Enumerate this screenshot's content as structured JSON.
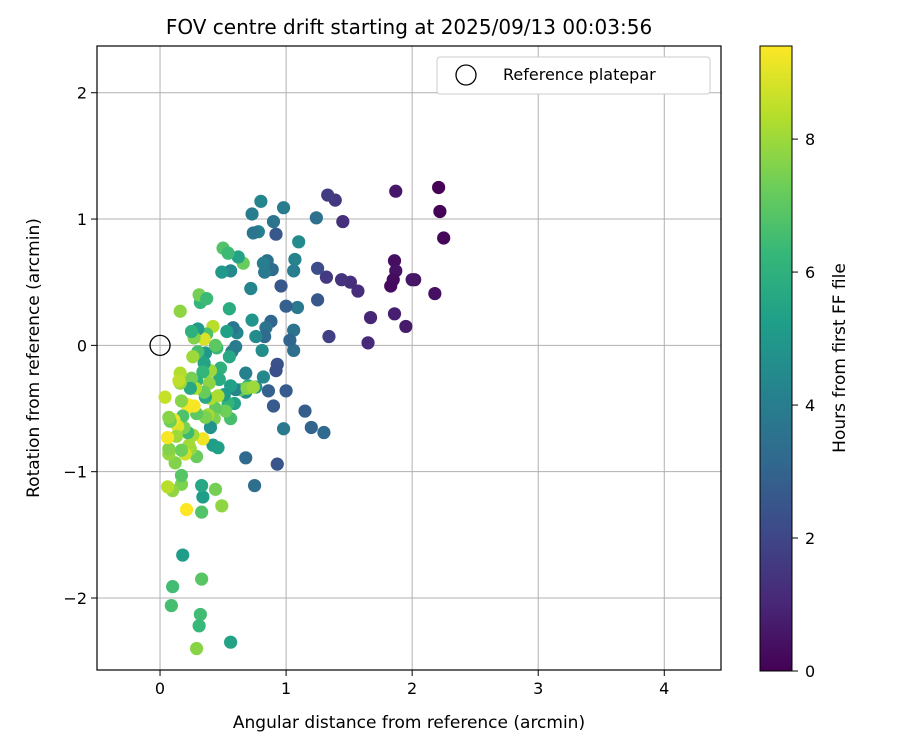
{
  "chart_data": {
    "type": "scatter",
    "title": "FOV centre drift starting at 2025/09/13 00:03:56",
    "xlabel": "Angular distance from reference (arcmin)",
    "ylabel": "Rotation from reference (arcmin)",
    "xlim": [
      -0.5,
      4.45
    ],
    "ylim": [
      -2.57,
      2.37
    ],
    "x_ticks": [
      0,
      1,
      2,
      3,
      4
    ],
    "y_ticks": [
      2,
      1,
      0,
      -1,
      -2
    ],
    "y_tick_labels": [
      "2",
      "1",
      "0",
      "−1",
      "−2"
    ],
    "grid": true,
    "legend": {
      "label": "Reference platepar",
      "placement": "top-right",
      "marker": "open circle"
    },
    "reference_point": {
      "x": 0,
      "y": 0
    },
    "colorbar": {
      "label": "Hours from first FF file",
      "range": [
        0,
        9.4
      ],
      "ticks": [
        0,
        2,
        4,
        6,
        8
      ],
      "colormap": "viridis",
      "colors": [
        "#440154",
        "#482878",
        "#3e4989",
        "#31688e",
        "#26828e",
        "#1f9e89",
        "#35b779",
        "#6ece58",
        "#b5de2b",
        "#fde725"
      ]
    },
    "points": [
      [
        2.21,
        1.25,
        0.05
      ],
      [
        2.22,
        1.06,
        0.1
      ],
      [
        2.25,
        0.85,
        0.15
      ],
      [
        2.18,
        0.41,
        0.4
      ],
      [
        2.02,
        0.52,
        0.5
      ],
      [
        2.0,
        0.52,
        0.55
      ],
      [
        1.95,
        0.15,
        0.7
      ],
      [
        1.87,
        1.22,
        0.6
      ],
      [
        1.86,
        0.67,
        0.35
      ],
      [
        1.87,
        0.59,
        0.45
      ],
      [
        1.85,
        0.52,
        0.3
      ],
      [
        1.83,
        0.47,
        0.25
      ],
      [
        1.86,
        0.25,
        0.8
      ],
      [
        1.67,
        0.22,
        1.0
      ],
      [
        1.65,
        0.02,
        1.1
      ],
      [
        1.57,
        0.43,
        1.2
      ],
      [
        1.51,
        0.5,
        1.3
      ],
      [
        1.44,
        0.52,
        1.4
      ],
      [
        1.45,
        0.98,
        1.3
      ],
      [
        1.39,
        1.15,
        1.5
      ],
      [
        1.33,
        1.19,
        1.7
      ],
      [
        1.32,
        0.54,
        1.6
      ],
      [
        1.34,
        0.07,
        1.8
      ],
      [
        1.25,
        0.61,
        2.2
      ],
      [
        1.25,
        0.36,
        2.6
      ],
      [
        1.15,
        -0.52,
        2.8
      ],
      [
        1.2,
        -0.65,
        3.0
      ],
      [
        1.3,
        -0.69,
        3.2
      ],
      [
        1.24,
        1.01,
        3.5
      ],
      [
        1.1,
        0.82,
        4.5
      ],
      [
        1.09,
        0.3,
        3.8
      ],
      [
        1.06,
        0.59,
        4.0
      ],
      [
        1.07,
        0.68,
        4.2
      ],
      [
        1.06,
        0.12,
        3.6
      ],
      [
        1.06,
        -0.04,
        3.4
      ],
      [
        1.03,
        0.04,
        3.1
      ],
      [
        1.0,
        0.31,
        2.9
      ],
      [
        1.0,
        -0.36,
        2.7
      ],
      [
        0.98,
        1.09,
        3.9
      ],
      [
        0.98,
        -0.66,
        3.8
      ],
      [
        0.96,
        0.47,
        2.6
      ],
      [
        0.93,
        -0.15,
        2.4
      ],
      [
        0.92,
        -0.2,
        2.3
      ],
      [
        0.93,
        -0.94,
        2.5
      ],
      [
        0.92,
        0.88,
        2.6
      ],
      [
        0.9,
        0.98,
        3.6
      ],
      [
        0.89,
        0.6,
        3.3
      ],
      [
        0.88,
        0.19,
        3.1
      ],
      [
        0.86,
        -0.36,
        2.9
      ],
      [
        0.9,
        -0.48,
        2.7
      ],
      [
        0.85,
        0.67,
        3.4
      ],
      [
        0.84,
        0.14,
        3.6
      ],
      [
        0.83,
        0.58,
        3.8
      ],
      [
        0.82,
        0.65,
        4.0
      ],
      [
        0.83,
        0.07,
        3.2
      ],
      [
        0.82,
        -0.25,
        4.4
      ],
      [
        0.8,
        1.14,
        4.3
      ],
      [
        0.81,
        -0.04,
        4.6
      ],
      [
        0.78,
        0.9,
        4.1
      ],
      [
        0.76,
        0.07,
        4.5
      ],
      [
        0.76,
        -0.33,
        4.7
      ],
      [
        0.75,
        -1.11,
        3.4
      ],
      [
        0.74,
        0.89,
        3.7
      ],
      [
        0.73,
        1.04,
        4.0
      ],
      [
        0.73,
        0.2,
        4.9
      ],
      [
        0.72,
        0.45,
        4.3
      ],
      [
        0.7,
        -0.32,
        5.8
      ],
      [
        0.68,
        -0.22,
        4.1
      ],
      [
        0.68,
        -0.37,
        4.6
      ],
      [
        0.68,
        -0.89,
        3.2
      ],
      [
        0.66,
        0.65,
        7.2
      ],
      [
        0.64,
        -0.35,
        7.0
      ],
      [
        0.62,
        0.7,
        5.4
      ],
      [
        0.61,
        0.1,
        4.3
      ],
      [
        0.6,
        -0.01,
        3.9
      ],
      [
        0.6,
        -0.35,
        4.3
      ],
      [
        0.59,
        -0.46,
        5.4
      ],
      [
        0.58,
        0.14,
        3.7
      ],
      [
        0.57,
        -0.05,
        3.9
      ],
      [
        0.56,
        0.59,
        4.4
      ],
      [
        0.56,
        -0.32,
        5.3
      ],
      [
        0.56,
        -0.58,
        6.6
      ],
      [
        0.55,
        -0.09,
        5.6
      ],
      [
        0.55,
        0.29,
        5.8
      ],
      [
        0.54,
        -0.46,
        6.1
      ],
      [
        0.53,
        0.11,
        5.3
      ],
      [
        0.52,
        -0.52,
        7.3
      ],
      [
        0.51,
        -0.39,
        5.1
      ],
      [
        0.5,
        0.77,
        6.8
      ],
      [
        0.49,
        0.58,
        5.0
      ],
      [
        0.48,
        -0.18,
        6.0
      ],
      [
        0.47,
        -0.27,
        5.8
      ],
      [
        0.46,
        -0.4,
        8.2
      ],
      [
        0.45,
        -0.02,
        6.3
      ],
      [
        0.44,
        -0.5,
        7.1
      ],
      [
        0.43,
        -0.58,
        7.5
      ],
      [
        0.42,
        -0.79,
        5.2
      ],
      [
        0.44,
        -1.14,
        7.4
      ],
      [
        0.49,
        -1.27,
        7.8
      ],
      [
        0.42,
        0.15,
        8.4
      ],
      [
        0.4,
        -0.2,
        8.0
      ],
      [
        0.4,
        -0.42,
        8.2
      ],
      [
        0.4,
        -0.65,
        4.8
      ],
      [
        0.39,
        -0.3,
        7.8
      ],
      [
        0.38,
        -0.55,
        8.1
      ],
      [
        0.37,
        0.09,
        6.7
      ],
      [
        0.36,
        -0.06,
        5.0
      ],
      [
        0.36,
        -0.41,
        5.6
      ],
      [
        0.36,
        -0.57,
        7.5
      ],
      [
        0.35,
        -0.14,
        5.4
      ],
      [
        0.35,
        -0.37,
        7.2
      ],
      [
        0.35,
        0.05,
        8.9
      ],
      [
        0.34,
        -0.74,
        9.2
      ],
      [
        0.34,
        -0.21,
        6.2
      ],
      [
        0.34,
        -1.2,
        5.2
      ],
      [
        0.33,
        -1.11,
        5.6
      ],
      [
        0.33,
        -1.32,
        6.8
      ],
      [
        0.33,
        -1.85,
        6.9
      ],
      [
        0.32,
        0.34,
        6.2
      ],
      [
        0.32,
        -2.13,
        6.5
      ],
      [
        0.31,
        -2.22,
        6.3
      ],
      [
        0.31,
        0.4,
        7.4
      ],
      [
        0.3,
        -0.05,
        6.6
      ],
      [
        0.3,
        0.13,
        5.1
      ],
      [
        0.29,
        -0.28,
        6.0
      ],
      [
        0.29,
        -0.54,
        7.0
      ],
      [
        0.29,
        -0.88,
        7.2
      ],
      [
        0.28,
        -0.34,
        8.3
      ],
      [
        0.27,
        0.06,
        7.6
      ],
      [
        0.27,
        -0.48,
        9.3
      ],
      [
        0.26,
        -0.09,
        8.0
      ],
      [
        0.26,
        -0.71,
        8.1
      ],
      [
        0.25,
        0.11,
        6.0
      ],
      [
        0.25,
        -0.26,
        7.4
      ],
      [
        0.24,
        -0.34,
        5.6
      ],
      [
        0.24,
        -0.82,
        7.9
      ],
      [
        0.23,
        -0.79,
        8.1
      ],
      [
        0.22,
        -0.49,
        9.2
      ],
      [
        0.22,
        -0.69,
        6.4
      ],
      [
        0.22,
        -0.47,
        9.3
      ],
      [
        0.21,
        -1.3,
        9.4
      ],
      [
        0.2,
        -0.86,
        8.7
      ],
      [
        0.19,
        -0.65,
        7.5
      ],
      [
        0.18,
        -0.56,
        6.7
      ],
      [
        0.17,
        -0.44,
        7.7
      ],
      [
        0.17,
        -0.83,
        7.3
      ],
      [
        0.17,
        -1.1,
        7.5
      ],
      [
        0.17,
        -1.03,
        6.9
      ],
      [
        0.16,
        -0.22,
        8.3
      ],
      [
        0.16,
        -0.3,
        7.9
      ],
      [
        0.16,
        0.27,
        7.8
      ],
      [
        0.15,
        -0.28,
        8.5
      ],
      [
        0.14,
        -0.64,
        8.9
      ],
      [
        0.13,
        -0.72,
        8.0
      ],
      [
        0.12,
        -0.93,
        7.6
      ],
      [
        0.11,
        -0.59,
        9.1
      ],
      [
        0.1,
        -1.15,
        7.8
      ],
      [
        0.1,
        -1.91,
        6.5
      ],
      [
        0.09,
        -2.06,
        6.6
      ],
      [
        0.08,
        -0.6,
        7.3
      ],
      [
        0.07,
        -0.57,
        7.7
      ],
      [
        0.07,
        -0.86,
        7.9
      ],
      [
        0.07,
        -0.82,
        7.6
      ],
      [
        0.06,
        -1.12,
        8.4
      ],
      [
        0.06,
        -0.73,
        9.3
      ],
      [
        0.04,
        -0.41,
        8.6
      ],
      [
        0.18,
        -1.66,
        5.2
      ],
      [
        0.29,
        -2.4,
        7.7
      ],
      [
        0.56,
        -2.35,
        5.4
      ],
      [
        0.54,
        0.73,
        6.4
      ],
      [
        0.46,
        -0.81,
        5.3
      ],
      [
        0.44,
        0.0,
        7.0
      ],
      [
        0.37,
        0.37,
        6.4
      ],
      [
        0.69,
        -0.34,
        7.7
      ],
      [
        0.74,
        -0.33,
        8.0
      ]
    ]
  }
}
